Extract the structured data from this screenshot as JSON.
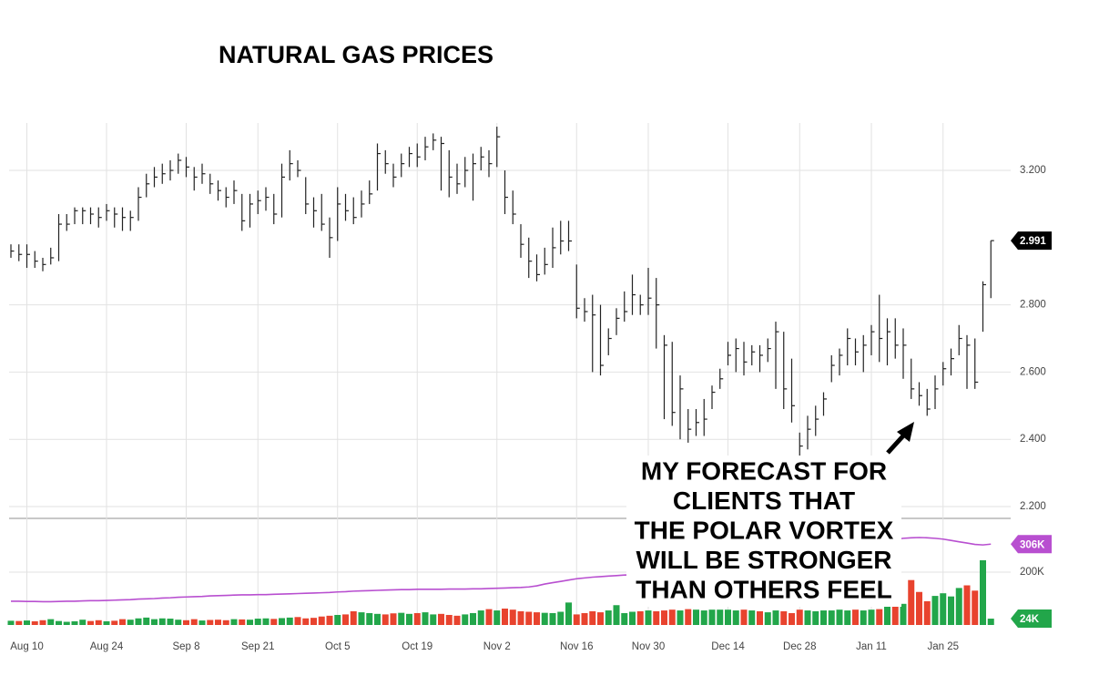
{
  "chart_data": {
    "type": "ohlc",
    "title": "NATURAL GAS PRICES",
    "categories": [
      null,
      null,
      "Aug 10",
      null,
      null,
      null,
      null,
      null,
      null,
      null,
      null,
      null,
      "Aug 24",
      null,
      null,
      null,
      null,
      null,
      null,
      null,
      null,
      null,
      "Sep 8",
      null,
      null,
      null,
      null,
      null,
      null,
      null,
      null,
      "Sep 21",
      null,
      null,
      null,
      null,
      null,
      null,
      null,
      null,
      null,
      "Oct 5",
      null,
      null,
      null,
      null,
      null,
      null,
      null,
      null,
      null,
      "Oct 19",
      null,
      null,
      null,
      null,
      null,
      null,
      null,
      null,
      null,
      "Nov 2",
      null,
      null,
      null,
      null,
      null,
      null,
      null,
      null,
      null,
      "Nov 16",
      null,
      null,
      null,
      null,
      null,
      null,
      null,
      null,
      "Nov 30",
      null,
      null,
      null,
      null,
      null,
      null,
      null,
      null,
      null,
      "Dec 14",
      null,
      null,
      null,
      null,
      null,
      null,
      null,
      null,
      "Dec 28",
      null,
      null,
      null,
      null,
      null,
      null,
      null,
      null,
      "Jan 11",
      null,
      null,
      null,
      null,
      null,
      null,
      null,
      null,
      "Jan 25",
      null,
      null,
      null,
      null,
      null,
      null
    ],
    "high": [
      2.98,
      2.98,
      2.98,
      2.96,
      2.94,
      2.97,
      3.07,
      3.07,
      3.09,
      3.09,
      3.09,
      3.09,
      3.1,
      3.09,
      3.09,
      3.08,
      3.15,
      3.19,
      3.21,
      3.22,
      3.23,
      3.25,
      3.24,
      3.21,
      3.22,
      3.19,
      3.17,
      3.15,
      3.17,
      3.13,
      3.13,
      3.14,
      3.15,
      3.13,
      3.22,
      3.26,
      3.23,
      3.18,
      3.12,
      3.13,
      3.06,
      3.15,
      3.13,
      3.12,
      3.14,
      3.17,
      3.28,
      3.26,
      3.22,
      3.25,
      3.27,
      3.28,
      3.3,
      3.31,
      3.3,
      3.26,
      3.22,
      3.24,
      3.25,
      3.27,
      3.26,
      3.33,
      3.2,
      3.14,
      3.04,
      3.0,
      2.95,
      2.97,
      3.03,
      3.05,
      3.05,
      2.92,
      2.82,
      2.83,
      2.8,
      2.73,
      2.79,
      2.84,
      2.89,
      2.83,
      2.91,
      2.88,
      2.71,
      2.69,
      2.59,
      2.49,
      2.49,
      2.52,
      2.56,
      2.61,
      2.69,
      2.7,
      2.69,
      2.68,
      2.68,
      2.7,
      2.75,
      2.72,
      2.64,
      2.42,
      2.47,
      2.5,
      2.54,
      2.65,
      2.67,
      2.73,
      2.7,
      2.71,
      2.74,
      2.83,
      2.76,
      2.76,
      2.73,
      2.64,
      2.57,
      2.55,
      2.59,
      2.63,
      2.67,
      2.74,
      2.71,
      2.7,
      2.87,
      2.991
    ],
    "low": [
      2.94,
      2.93,
      2.91,
      2.91,
      2.9,
      2.92,
      2.93,
      3.02,
      3.04,
      3.04,
      3.04,
      3.03,
      3.05,
      3.03,
      3.02,
      3.02,
      3.05,
      3.12,
      3.15,
      3.16,
      3.17,
      3.19,
      3.18,
      3.14,
      3.16,
      3.13,
      3.11,
      3.09,
      3.1,
      3.02,
      3.03,
      3.07,
      3.08,
      3.04,
      3.06,
      3.17,
      3.18,
      3.07,
      3.03,
      3.02,
      2.94,
      2.99,
      3.05,
      3.04,
      3.06,
      3.1,
      3.14,
      3.19,
      3.15,
      3.18,
      3.21,
      3.21,
      3.23,
      3.26,
      3.14,
      3.12,
      3.13,
      3.15,
      3.11,
      3.2,
      3.18,
      3.21,
      3.07,
      3.04,
      2.94,
      2.88,
      2.87,
      2.89,
      2.91,
      2.95,
      2.96,
      2.76,
      2.75,
      2.6,
      2.59,
      2.65,
      2.71,
      2.75,
      2.77,
      2.77,
      2.77,
      2.67,
      2.46,
      2.44,
      2.4,
      2.39,
      2.41,
      2.41,
      2.49,
      2.55,
      2.62,
      2.6,
      2.59,
      2.62,
      2.6,
      2.63,
      2.55,
      2.49,
      2.45,
      2.35,
      2.37,
      2.41,
      2.47,
      2.57,
      2.59,
      2.62,
      2.62,
      2.6,
      2.65,
      2.63,
      2.62,
      2.64,
      2.58,
      2.52,
      2.5,
      2.47,
      2.49,
      2.56,
      2.59,
      2.65,
      2.55,
      2.55,
      2.72,
      2.82
    ],
    "close": [
      2.96,
      2.95,
      2.95,
      2.93,
      2.92,
      2.94,
      3.04,
      3.04,
      3.08,
      3.08,
      3.07,
      3.06,
      3.08,
      3.07,
      3.06,
      3.06,
      3.12,
      3.16,
      3.18,
      3.19,
      3.2,
      3.23,
      3.21,
      3.18,
      3.19,
      3.16,
      3.14,
      3.12,
      3.14,
      3.05,
      3.1,
      3.11,
      3.12,
      3.07,
      3.18,
      3.22,
      3.2,
      3.1,
      3.08,
      3.04,
      3.0,
      3.1,
      3.08,
      3.06,
      3.1,
      3.13,
      3.25,
      3.22,
      3.18,
      3.22,
      3.25,
      3.24,
      3.27,
      3.29,
      3.28,
      3.18,
      3.16,
      3.2,
      3.22,
      3.24,
      3.22,
      3.3,
      3.12,
      3.07,
      2.98,
      2.93,
      2.89,
      2.92,
      2.97,
      2.99,
      2.99,
      2.79,
      2.78,
      2.77,
      2.62,
      2.7,
      2.76,
      2.78,
      2.83,
      2.8,
      2.82,
      2.8,
      2.68,
      2.48,
      2.55,
      2.43,
      2.45,
      2.46,
      2.54,
      2.58,
      2.65,
      2.67,
      2.63,
      2.66,
      2.65,
      2.67,
      2.72,
      2.55,
      2.5,
      2.38,
      2.43,
      2.46,
      2.52,
      2.62,
      2.65,
      2.7,
      2.66,
      2.68,
      2.72,
      2.7,
      2.72,
      2.68,
      2.68,
      2.55,
      2.53,
      2.49,
      2.55,
      2.61,
      2.64,
      2.7,
      2.68,
      2.57,
      2.86,
      2.991
    ],
    "color": "#222222",
    "ylim": [
      2.1675,
      3.341
    ],
    "yticks": [
      {
        "value": 2.2,
        "label": "2.200"
      },
      {
        "value": 2.4,
        "label": "2.400"
      },
      {
        "value": 2.6,
        "label": "2.600"
      },
      {
        "value": 2.8,
        "label": "2.800"
      },
      {
        "value": 3.2,
        "label": "3.200"
      }
    ],
    "grid": true,
    "volume": {
      "values": [
        16000,
        15000,
        17000,
        14000,
        18000,
        22000,
        15000,
        12000,
        14000,
        20000,
        15000,
        18000,
        14000,
        16000,
        22000,
        20000,
        25000,
        28000,
        22000,
        25000,
        24000,
        20000,
        18000,
        22000,
        17000,
        19000,
        20000,
        18000,
        22000,
        21000,
        20000,
        24000,
        25000,
        23000,
        26000,
        28000,
        30000,
        25000,
        27000,
        32000,
        35000,
        38000,
        40000,
        52000,
        48000,
        45000,
        42000,
        40000,
        44000,
        46000,
        42000,
        45000,
        48000,
        40000,
        42000,
        38000,
        35000,
        40000,
        45000,
        55000,
        60000,
        55000,
        62000,
        58000,
        52000,
        50000,
        48000,
        46000,
        45000,
        50000,
        85000,
        40000,
        45000,
        52000,
        48000,
        55000,
        75000,
        45000,
        50000,
        52000,
        55000,
        52000,
        55000,
        58000,
        55000,
        60000,
        58000,
        55000,
        58000,
        58000,
        58000,
        55000,
        58000,
        55000,
        52000,
        48000,
        55000,
        52000,
        45000,
        58000,
        55000,
        52000,
        55000,
        55000,
        58000,
        55000,
        58000,
        55000,
        58000,
        60000,
        80000,
        80000,
        80000,
        170000,
        125000,
        90000,
        110000,
        120000,
        108000,
        140000,
        150000,
        130000,
        245000,
        24000
      ],
      "up_color": "#22a64a",
      "down_color": "#e8432e",
      "last_label": "24K",
      "ylim": [
        0,
        400000
      ],
      "yticks": [
        {
          "value": 200000,
          "label": "200K"
        }
      ]
    },
    "moving_average": {
      "color": "#b84fd0",
      "last_label": "306K",
      "values": [
        90000,
        90000,
        89000,
        89000,
        88000,
        88000,
        89000,
        90000,
        90000,
        91000,
        92000,
        92000,
        93000,
        94000,
        95000,
        96000,
        98000,
        99000,
        100000,
        102000,
        103000,
        105000,
        106000,
        107000,
        108000,
        110000,
        111000,
        112000,
        113000,
        114000,
        114000,
        115000,
        115000,
        116000,
        117000,
        118000,
        119000,
        120000,
        121000,
        122000,
        123000,
        125000,
        126000,
        128000,
        129000,
        130000,
        131000,
        132000,
        133000,
        134000,
        134000,
        135000,
        135000,
        135000,
        135000,
        136000,
        136000,
        136000,
        137000,
        137000,
        138000,
        139000,
        140000,
        141000,
        142000,
        144000,
        148000,
        155000,
        160000,
        165000,
        170000,
        175000,
        178000,
        181000,
        183000,
        185000,
        187000,
        189000,
        190000,
        192000,
        194000,
        198000,
        202000,
        206000,
        210000,
        214000,
        218000,
        222000,
        226000,
        230000,
        234000,
        238000,
        242000,
        246000,
        250000,
        254000,
        258000,
        262000,
        266000,
        270000,
        274000,
        278000,
        282000,
        286000,
        290000,
        294000,
        298000,
        302000,
        306000,
        312000,
        318000,
        324000,
        328000,
        330000,
        331000,
        330000,
        328000,
        325000,
        320000,
        315000,
        310000,
        305000,
        303000,
        306000
      ]
    },
    "annotation": [
      "MY FORECAST FOR",
      "CLIENTS THAT",
      "THE POLAR VORTEX",
      "WILL BE STRONGER",
      "THAN OTHERS FEEL"
    ]
  }
}
